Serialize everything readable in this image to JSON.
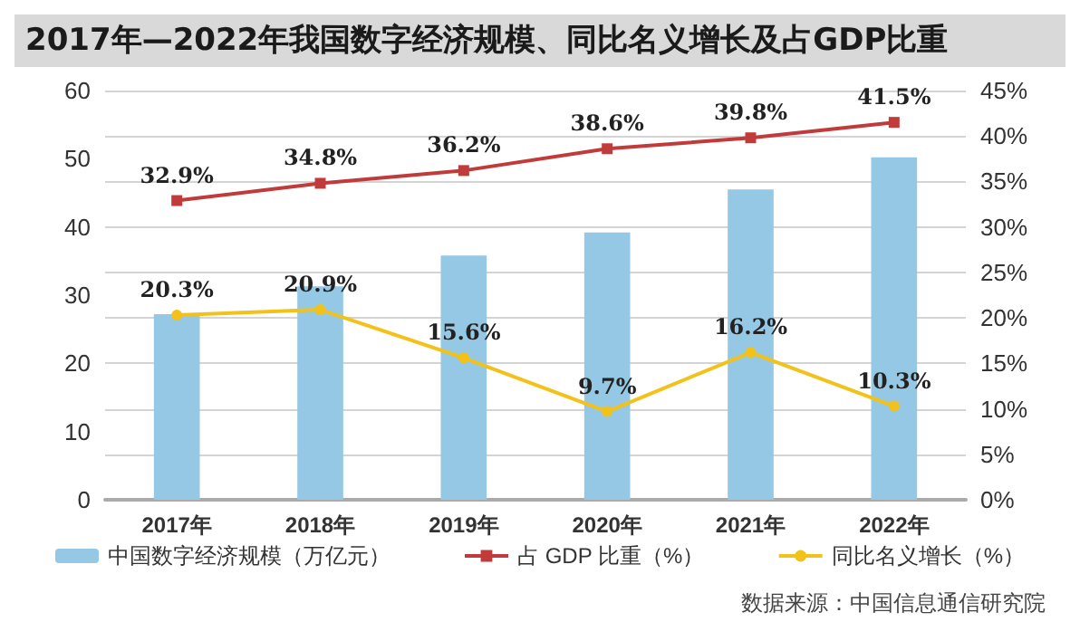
{
  "chart_data": {
    "type": "bar",
    "title": "2017年—2022年我国数字经济规模、同比名义增长及占GDP比重",
    "annotations": [
      "数据来源：中国信息通信研究院"
    ],
    "categories": [
      "2017年",
      "2018年",
      "2019年",
      "2020年",
      "2021年",
      "2022年"
    ],
    "series": [
      {
        "name": "中国数字经济规模（万亿元）",
        "color": "#95c8e4",
        "values": [
          27.2,
          31.3,
          35.8,
          39.2,
          45.5,
          50.2
        ]
      },
      {
        "name": "占 GDP 比重（%）",
        "type": "line",
        "axis": "y2",
        "color": "#c23b3b",
        "marker": "square",
        "values": [
          32.9,
          34.8,
          36.2,
          38.6,
          39.8,
          41.5
        ],
        "value_labels": [
          "32.9%",
          "34.8%",
          "36.2%",
          "38.6%",
          "39.8%",
          "41.5%"
        ]
      },
      {
        "name": "同比名义增长（%）",
        "type": "line",
        "axis": "y2",
        "color": "#f2c21a",
        "marker": "circle",
        "values": [
          20.3,
          20.9,
          15.6,
          9.7,
          16.2,
          10.3
        ],
        "value_labels": [
          "20.3%",
          "20.9%",
          "15.6%",
          "9.7%",
          "16.2%",
          "10.3%"
        ]
      }
    ],
    "ylim": [
      0,
      60
    ],
    "yticks": [
      0,
      10,
      20,
      30,
      40,
      50,
      60
    ],
    "y2lim": [
      0,
      45
    ],
    "y2ticks": [
      {
        "value": 0,
        "label": "0%"
      },
      {
        "value": 5,
        "label": "5%"
      },
      {
        "value": 10,
        "label": "10%"
      },
      {
        "value": 15,
        "label": "15%"
      },
      {
        "value": 20,
        "label": "20%"
      },
      {
        "value": 25,
        "label": "25%"
      },
      {
        "value": 30,
        "label": "30%"
      },
      {
        "value": 35,
        "label": "35%"
      },
      {
        "value": 40,
        "label": "40%"
      },
      {
        "value": 45,
        "label": "45%"
      }
    ],
    "grid": true,
    "legend": "bottom"
  }
}
